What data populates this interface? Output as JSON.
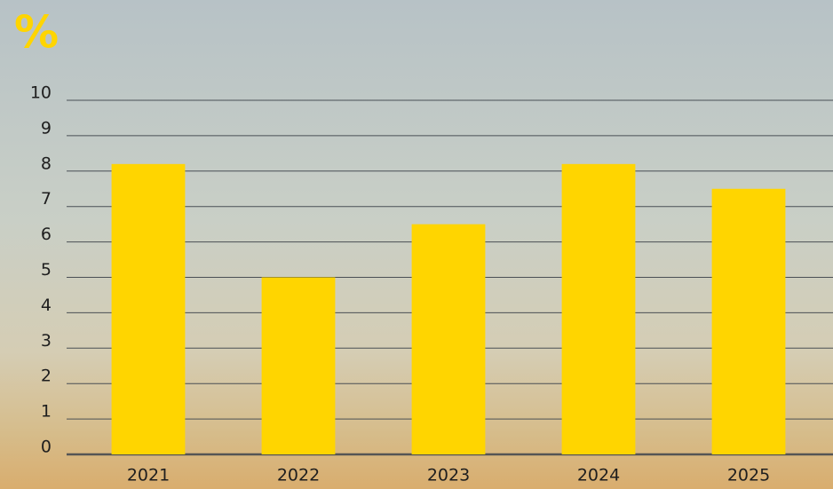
{
  "chart_data": {
    "type": "bar",
    "ylabel": "%",
    "categories": [
      "2021",
      "2022",
      "2023",
      "2024",
      "2025"
    ],
    "values": [
      8.2,
      5.0,
      6.5,
      8.2,
      7.5
    ],
    "color": "#ffd500",
    "ylim": [
      0,
      10
    ],
    "yticks": [
      0,
      1,
      2,
      3,
      4,
      5,
      6,
      7,
      8,
      9,
      10
    ],
    "grid": true
  }
}
